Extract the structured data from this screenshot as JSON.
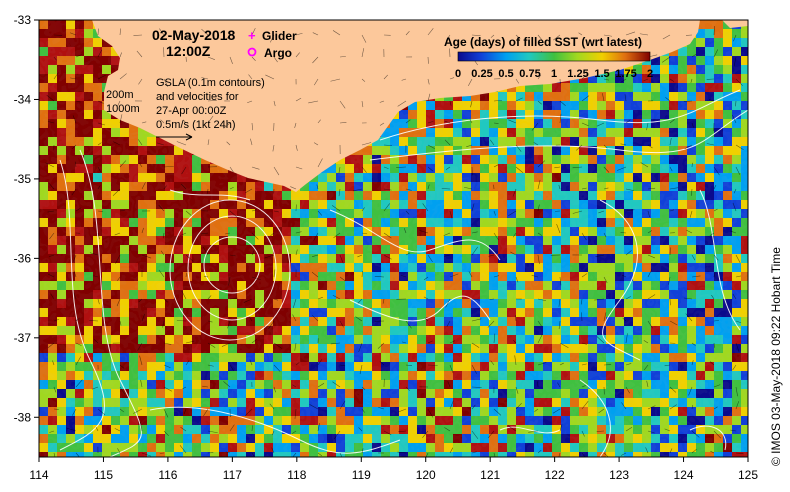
{
  "header": {
    "date": "02-May-2018",
    "time": "12:00Z"
  },
  "legend_markers": [
    {
      "label": "Glider",
      "symbol": "+",
      "color": "#ff00ff"
    },
    {
      "label": "Argo",
      "symbol": "o",
      "color": "#ff00ff"
    }
  ],
  "annotations": {
    "gsla_lines": [
      "GSLA (0.1m contours)",
      "and velocities for",
      "27-Apr 00:00Z",
      "0.5m/s (1kt 24h)"
    ],
    "depth_labels": [
      "200m",
      "1000m"
    ]
  },
  "colorbar": {
    "title": "Age (days) of filled SST (wrt latest)",
    "tick_labels": [
      "0",
      "0.25",
      "0.5",
      "0.75",
      "1",
      "1.25",
      "1.5",
      "1.75",
      "2"
    ],
    "colors": [
      "#0a0a8c",
      "#1040d8",
      "#00a0f0",
      "#20c8c0",
      "#40c040",
      "#a0d820",
      "#f0d000",
      "#e07010",
      "#b01010",
      "#800000"
    ]
  },
  "axes": {
    "x_ticks": [
      "114",
      "115",
      "116",
      "117",
      "118",
      "119",
      "120",
      "121",
      "122",
      "123",
      "124",
      "125"
    ],
    "y_ticks": [
      "-33",
      "-34",
      "-35",
      "-36",
      "-37",
      "-38"
    ],
    "xlim": [
      114,
      125
    ],
    "ylim": [
      -38.5,
      -33
    ]
  },
  "credit": "© IMOS 03-May-2018 09:22 Hobart Time",
  "colors": {
    "land": "#fcc89b",
    "contour": "#ffffff",
    "marker": "#ff00ff"
  }
}
